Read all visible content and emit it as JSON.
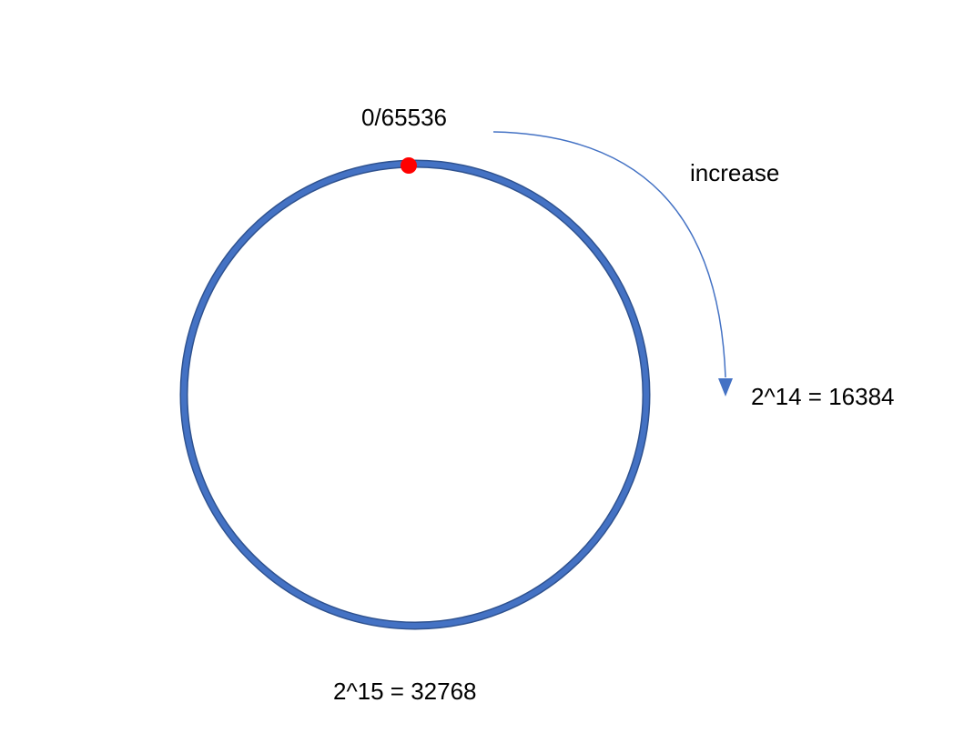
{
  "diagram": {
    "labels": {
      "top": "0/65536",
      "direction": "increase",
      "right": "2^14 = 16384",
      "bottom": "2^15 = 32768"
    },
    "ring_positions": [
      {
        "value": 0,
        "label_key": "top",
        "marker": true
      },
      {
        "value": 16384,
        "label_key": "right"
      },
      {
        "value": 32768,
        "label_key": "bottom"
      }
    ],
    "direction": "clockwise",
    "colors": {
      "ring": "#4472C4",
      "ring_edge": "#2F528F",
      "arrow": "#4472C4",
      "marker": "#FF0000",
      "text": "#000000"
    }
  }
}
